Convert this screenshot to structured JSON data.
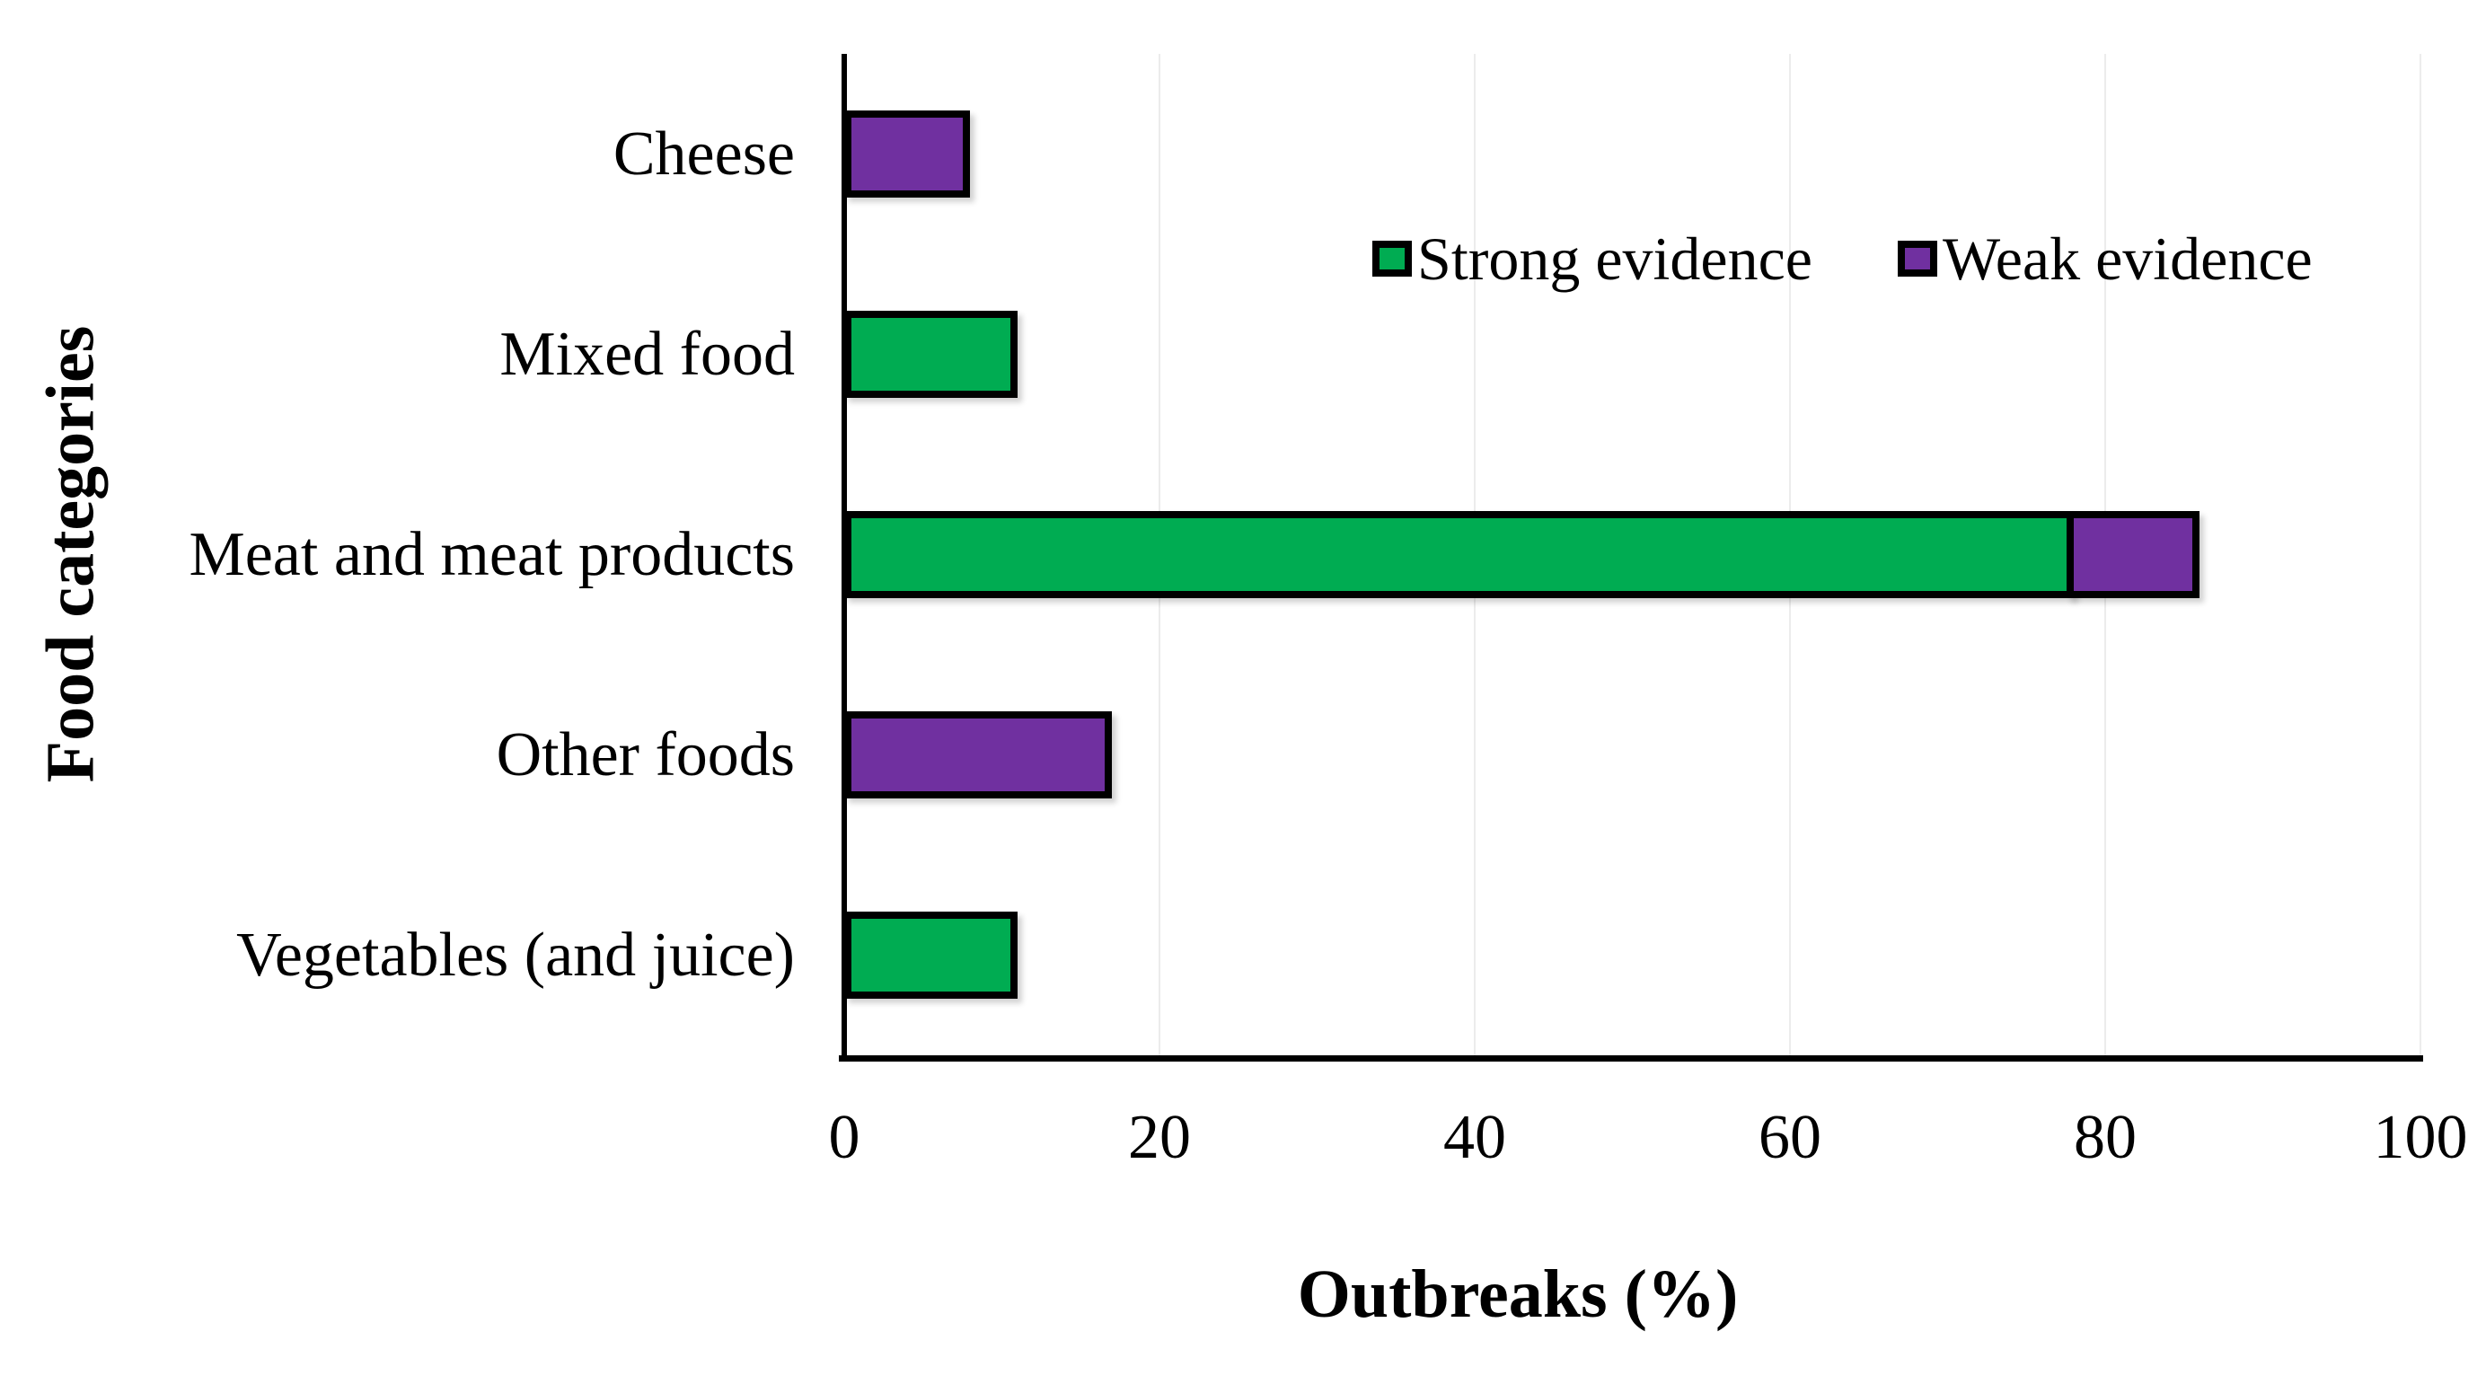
{
  "chart_data": {
    "type": "bar",
    "orientation": "horizontal",
    "title": "",
    "xlabel": "Outbreaks (%)",
    "ylabel": "Food categories",
    "categories": [
      "Cheese",
      "Mixed food",
      "Meat and meat products",
      "Other foods",
      "Vegetables (and juice)"
    ],
    "series": [
      {
        "name": "Strong evidence",
        "color": "#00AC52",
        "values": [
          0,
          11,
          78,
          0,
          11
        ]
      },
      {
        "name": "Weak evidence",
        "color": "#7030A0",
        "values": [
          8,
          0,
          8,
          17,
          0
        ]
      }
    ],
    "stacked": true,
    "xlim": [
      0,
      100
    ],
    "xticks": [
      0,
      20,
      40,
      60,
      80,
      100
    ],
    "grid": "vertical, light gray",
    "legend_position": "inside top, right of center",
    "bar_outline_color": "#000000",
    "gridline_color": "#ececec",
    "axis_color": "#000000"
  }
}
